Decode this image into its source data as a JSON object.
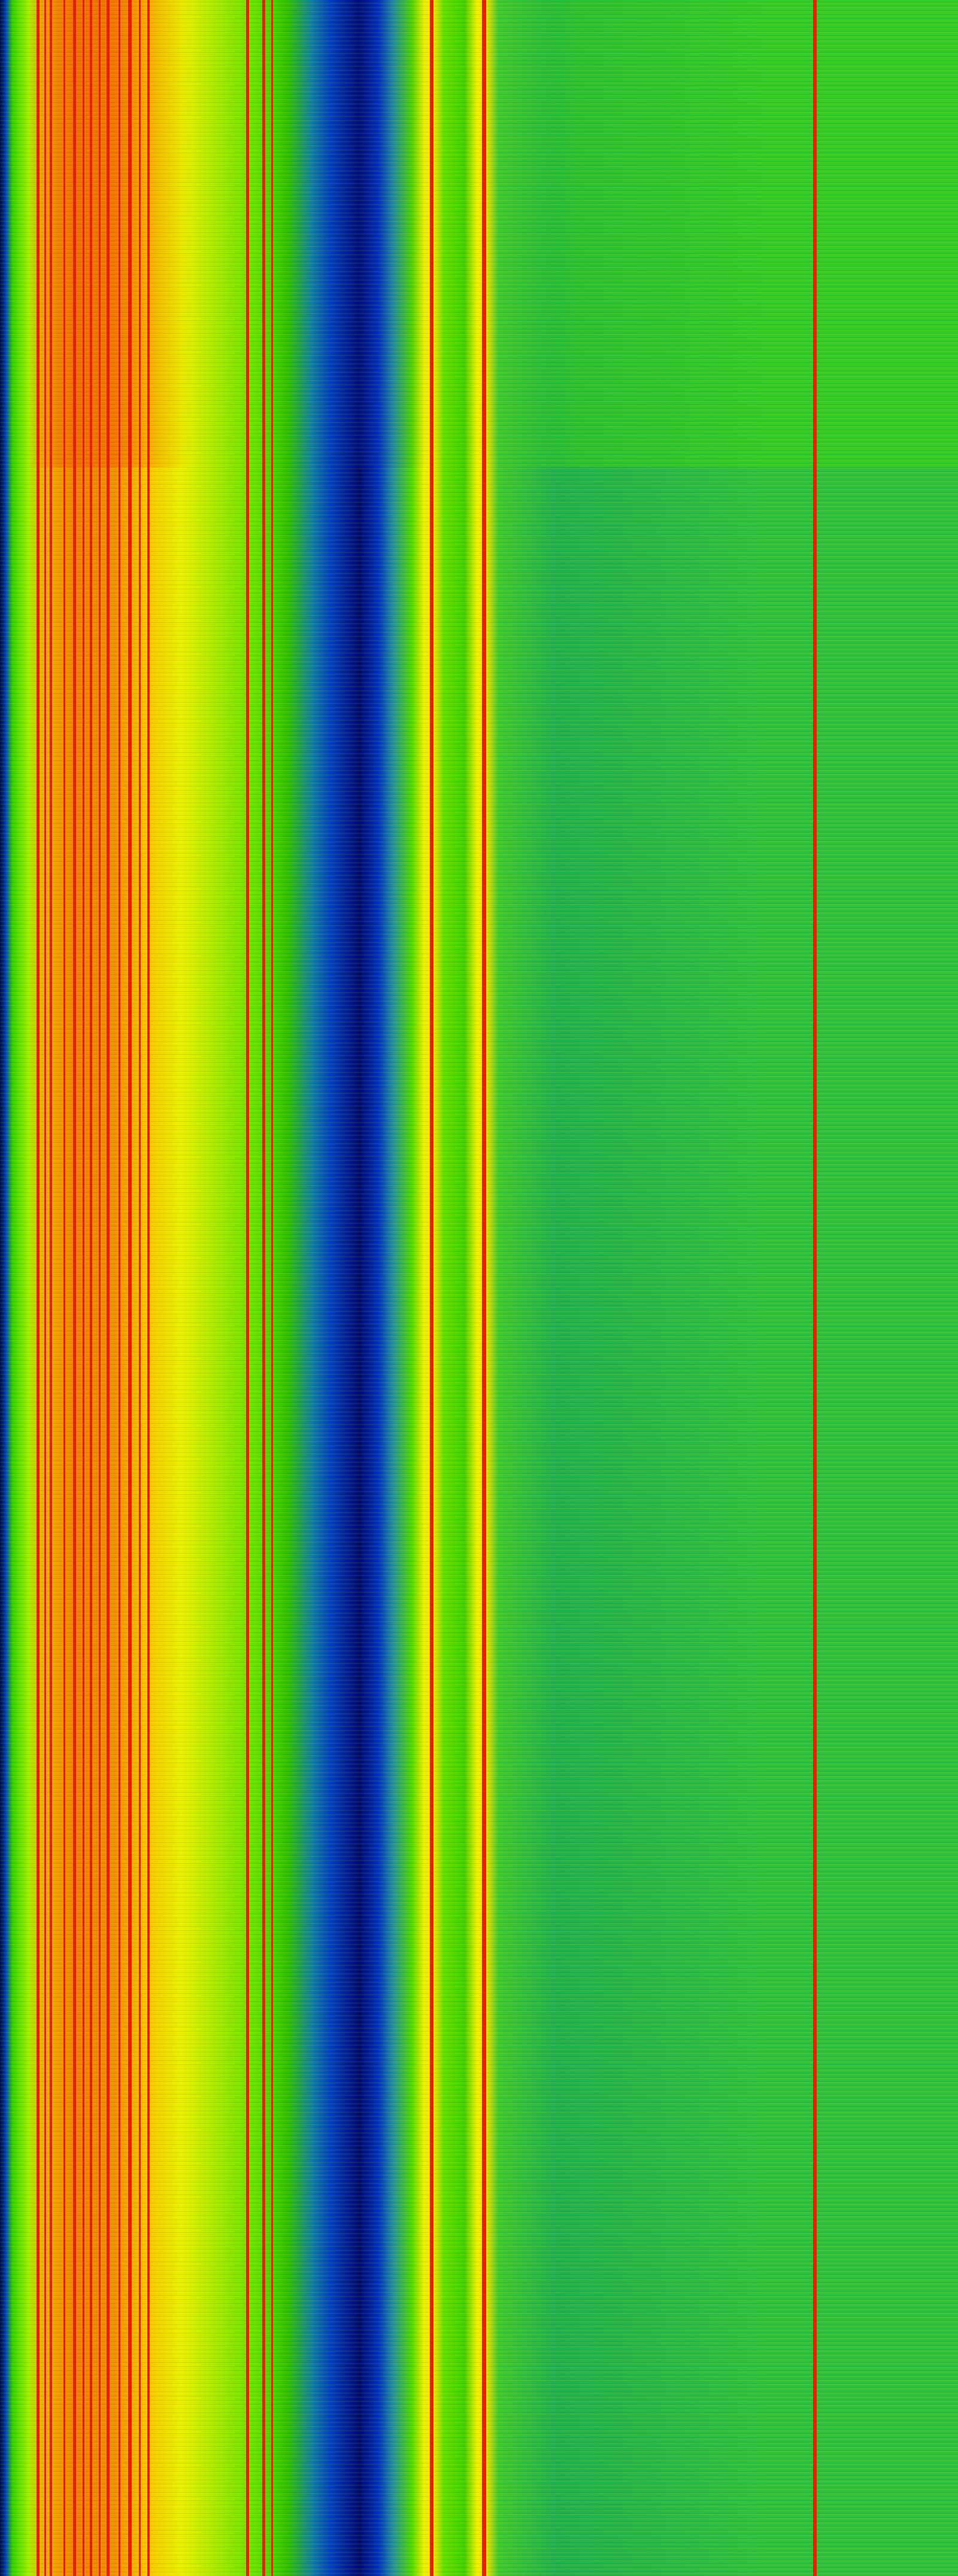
{
  "colormap": {
    "low": "#000a70",
    "mid_low": "#0040c0",
    "mid": "#30c000",
    "mid_high": "#f0f000",
    "high": "#e82000"
  }
}
